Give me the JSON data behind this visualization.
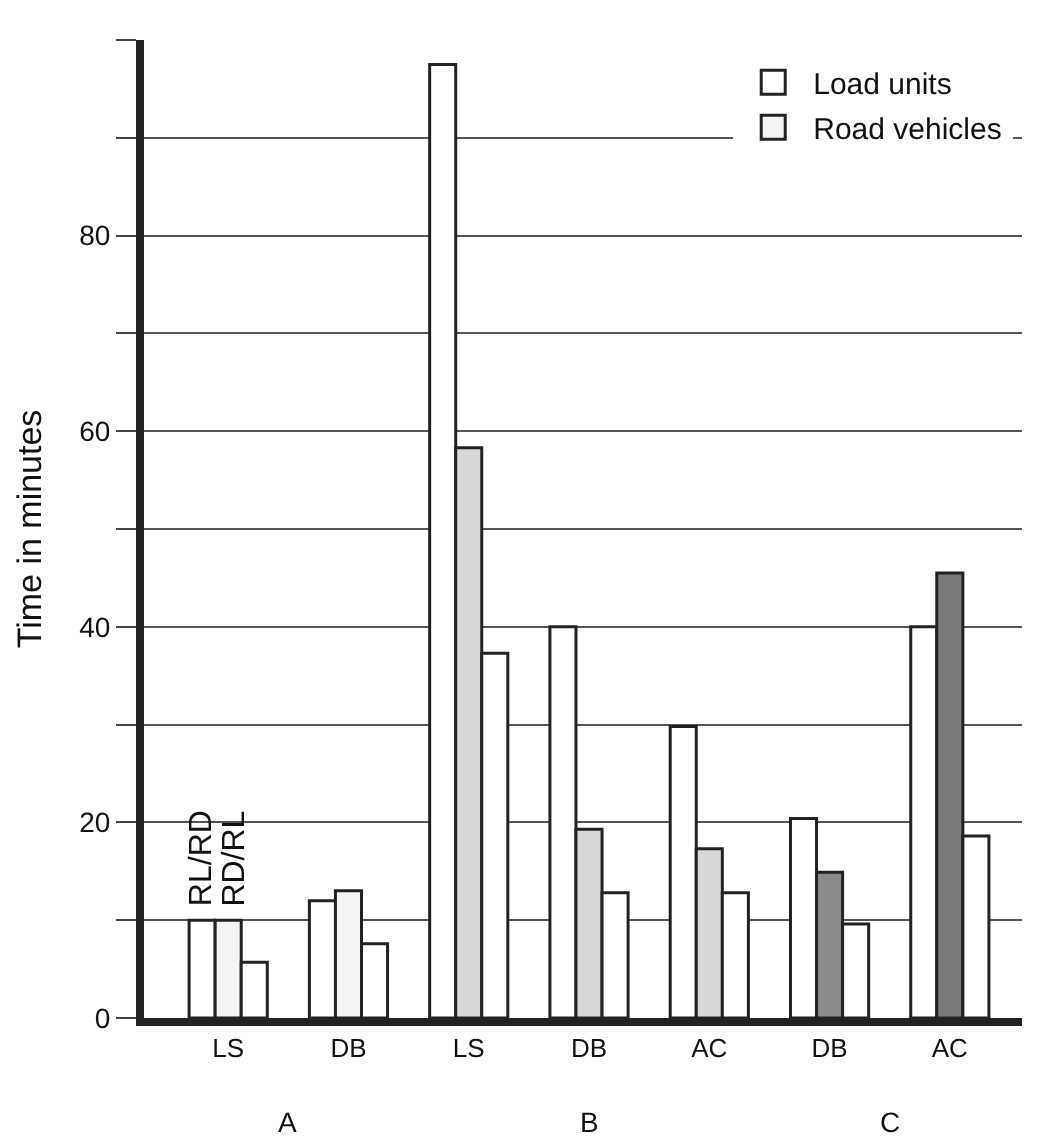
{
  "chart_data": {
    "type": "bar",
    "ylabel": "Time in minutes",
    "categories": [
      "LS",
      "DB",
      "LS",
      "DB",
      "AC",
      "DB",
      "AC"
    ],
    "series": [
      {
        "name": "Load units",
        "color": "#ffffff",
        "values": [
          10,
          12,
          97.5,
          40,
          29.8,
          20.4,
          40
        ]
      },
      {
        "name": "Road vehicles",
        "color": "#e4e4e4",
        "colors": [
          "#f4f4f4",
          "#f4f4f4",
          "#d8d8d8",
          "#d8d8d8",
          "#d8d8d8",
          "#8a8a8a",
          "#7a7a7a"
        ],
        "values": [
          10,
          13,
          58.3,
          19.3,
          17.3,
          14.9,
          45.5
        ]
      },
      {
        "color": "#ffffff",
        "values": [
          5.7,
          7.6,
          37.3,
          12.8,
          12.8,
          9.6,
          18.6
        ]
      }
    ],
    "ylim": [
      0,
      100
    ],
    "yticks": [
      0,
      {
        "value": 10,
        "label": null
      },
      20,
      {
        "value": 30,
        "label": null
      },
      40,
      {
        "value": 50,
        "label": null
      },
      60,
      {
        "value": 70,
        "label": null
      },
      80,
      {
        "value": 90,
        "label": null
      },
      {
        "value": 100,
        "label": null
      }
    ],
    "grid": "y",
    "legend": "top right",
    "annotations": [
      "RL/RD",
      "RD/RL",
      "A",
      "B",
      "C"
    ]
  }
}
